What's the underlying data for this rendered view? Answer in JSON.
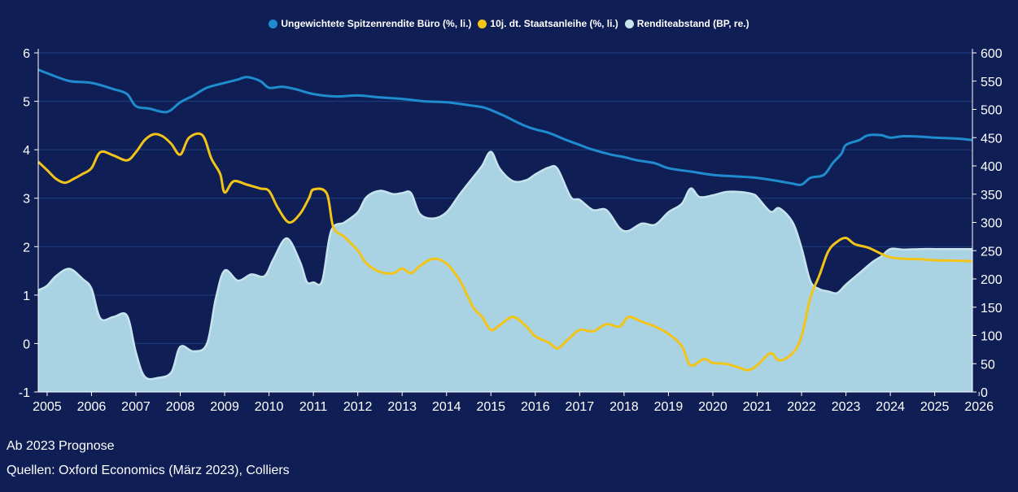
{
  "colors": {
    "background": "#0f1f55",
    "yield_office": "#1f8ccf",
    "bund": "#f2c418",
    "spread_fill": "#a9d3e3",
    "spread_line": "#c7e4ee",
    "grid": "#1f3f80"
  },
  "legend": [
    {
      "label": "Ungewichtete Spitzenrendite Büro (%, li.)",
      "color": "#1f8ccf"
    },
    {
      "label": "10j. dt. Staatsanleihe (%, li.)",
      "color": "#f2c418"
    },
    {
      "label": "Renditeabstand (BP, re.)",
      "color": "#c7e4ee"
    }
  ],
  "footnotes": {
    "forecast": "Ab 2023 Prognose",
    "sources": "Quellen: Oxford Economics (März 2023), Colliers"
  },
  "chart_data": {
    "type": "line",
    "x_range": [
      2004.8,
      2025.85
    ],
    "x_ticks": [
      "2005",
      "2006",
      "2007",
      "2008",
      "2009",
      "2010",
      "2011",
      "2012",
      "2013",
      "2014",
      "2015",
      "2016",
      "2017",
      "2018",
      "2019",
      "2020",
      "2021",
      "2022",
      "2023",
      "2024",
      "2025",
      "2026"
    ],
    "y_left": {
      "range": [
        -1,
        6
      ],
      "ticks": [
        "-1",
        "0",
        "1",
        "2",
        "3",
        "4",
        "5",
        "6"
      ]
    },
    "y_right": {
      "range": [
        0,
        600
      ],
      "ticks": [
        "0",
        "50",
        "100",
        "150",
        "200",
        "250",
        "300",
        "350",
        "400",
        "450",
        "500",
        "550",
        "600"
      ]
    },
    "grid": true,
    "legend_position": "top",
    "series": [
      {
        "name": "Ungewichtete Spitzenrendite Büro (%, li.)",
        "axis": "left",
        "points": [
          [
            2004.8,
            5.65
          ],
          [
            2005.0,
            5.58
          ],
          [
            2005.5,
            5.42
          ],
          [
            2006.0,
            5.38
          ],
          [
            2006.5,
            5.25
          ],
          [
            2006.8,
            5.15
          ],
          [
            2007.0,
            4.9
          ],
          [
            2007.3,
            4.85
          ],
          [
            2007.7,
            4.78
          ],
          [
            2008.0,
            4.98
          ],
          [
            2008.3,
            5.12
          ],
          [
            2008.6,
            5.28
          ],
          [
            2009.0,
            5.38
          ],
          [
            2009.3,
            5.45
          ],
          [
            2009.5,
            5.5
          ],
          [
            2009.8,
            5.42
          ],
          [
            2010.0,
            5.28
          ],
          [
            2010.3,
            5.3
          ],
          [
            2010.6,
            5.25
          ],
          [
            2011.0,
            5.15
          ],
          [
            2011.5,
            5.1
          ],
          [
            2012.0,
            5.12
          ],
          [
            2012.5,
            5.08
          ],
          [
            2013.0,
            5.05
          ],
          [
            2013.5,
            5.0
          ],
          [
            2014.0,
            4.98
          ],
          [
            2014.5,
            4.92
          ],
          [
            2014.8,
            4.88
          ],
          [
            2015.0,
            4.82
          ],
          [
            2015.3,
            4.7
          ],
          [
            2015.7,
            4.52
          ],
          [
            2016.0,
            4.42
          ],
          [
            2016.3,
            4.35
          ],
          [
            2016.7,
            4.2
          ],
          [
            2017.0,
            4.1
          ],
          [
            2017.3,
            4.0
          ],
          [
            2017.7,
            3.9
          ],
          [
            2018.0,
            3.85
          ],
          [
            2018.3,
            3.78
          ],
          [
            2018.7,
            3.72
          ],
          [
            2019.0,
            3.62
          ],
          [
            2019.5,
            3.55
          ],
          [
            2020.0,
            3.48
          ],
          [
            2020.5,
            3.45
          ],
          [
            2021.0,
            3.42
          ],
          [
            2021.5,
            3.35
          ],
          [
            2021.8,
            3.3
          ],
          [
            2022.0,
            3.28
          ],
          [
            2022.2,
            3.42
          ],
          [
            2022.5,
            3.48
          ],
          [
            2022.7,
            3.72
          ],
          [
            2022.9,
            3.92
          ],
          [
            2023.0,
            4.1
          ],
          [
            2023.3,
            4.2
          ],
          [
            2023.5,
            4.3
          ],
          [
            2023.8,
            4.3
          ],
          [
            2024.0,
            4.25
          ],
          [
            2024.3,
            4.28
          ],
          [
            2024.7,
            4.27
          ],
          [
            2025.0,
            4.25
          ],
          [
            2025.5,
            4.23
          ],
          [
            2025.85,
            4.2
          ]
        ]
      },
      {
        "name": "10j. dt. Staatsanleihe (%, li.)",
        "axis": "left",
        "points": [
          [
            2004.8,
            3.75
          ],
          [
            2005.0,
            3.58
          ],
          [
            2005.2,
            3.4
          ],
          [
            2005.4,
            3.32
          ],
          [
            2005.6,
            3.4
          ],
          [
            2005.8,
            3.5
          ],
          [
            2006.0,
            3.62
          ],
          [
            2006.2,
            3.95
          ],
          [
            2006.5,
            3.88
          ],
          [
            2006.8,
            3.78
          ],
          [
            2007.0,
            3.95
          ],
          [
            2007.2,
            4.2
          ],
          [
            2007.4,
            4.32
          ],
          [
            2007.6,
            4.28
          ],
          [
            2007.8,
            4.12
          ],
          [
            2008.0,
            3.9
          ],
          [
            2008.2,
            4.25
          ],
          [
            2008.5,
            4.3
          ],
          [
            2008.7,
            3.82
          ],
          [
            2008.9,
            3.5
          ],
          [
            2009.0,
            3.12
          ],
          [
            2009.2,
            3.35
          ],
          [
            2009.5,
            3.28
          ],
          [
            2009.8,
            3.2
          ],
          [
            2010.0,
            3.15
          ],
          [
            2010.2,
            2.8
          ],
          [
            2010.45,
            2.5
          ],
          [
            2010.7,
            2.68
          ],
          [
            2010.9,
            3.0
          ],
          [
            2011.0,
            3.18
          ],
          [
            2011.3,
            3.1
          ],
          [
            2011.45,
            2.4
          ],
          [
            2011.7,
            2.2
          ],
          [
            2012.0,
            1.92
          ],
          [
            2012.2,
            1.65
          ],
          [
            2012.5,
            1.48
          ],
          [
            2012.8,
            1.45
          ],
          [
            2013.0,
            1.55
          ],
          [
            2013.2,
            1.45
          ],
          [
            2013.4,
            1.6
          ],
          [
            2013.7,
            1.75
          ],
          [
            2014.0,
            1.65
          ],
          [
            2014.3,
            1.3
          ],
          [
            2014.6,
            0.75
          ],
          [
            2014.8,
            0.55
          ],
          [
            2015.0,
            0.28
          ],
          [
            2015.2,
            0.38
          ],
          [
            2015.5,
            0.55
          ],
          [
            2015.8,
            0.35
          ],
          [
            2016.0,
            0.15
          ],
          [
            2016.3,
            0.02
          ],
          [
            2016.5,
            -0.1
          ],
          [
            2016.7,
            0.05
          ],
          [
            2017.0,
            0.28
          ],
          [
            2017.3,
            0.25
          ],
          [
            2017.6,
            0.4
          ],
          [
            2017.9,
            0.35
          ],
          [
            2018.1,
            0.55
          ],
          [
            2018.4,
            0.45
          ],
          [
            2018.7,
            0.35
          ],
          [
            2019.0,
            0.2
          ],
          [
            2019.3,
            -0.05
          ],
          [
            2019.5,
            -0.45
          ],
          [
            2019.8,
            -0.32
          ],
          [
            2020.0,
            -0.4
          ],
          [
            2020.3,
            -0.42
          ],
          [
            2020.6,
            -0.5
          ],
          [
            2020.8,
            -0.55
          ],
          [
            2021.0,
            -0.45
          ],
          [
            2021.3,
            -0.2
          ],
          [
            2021.5,
            -0.35
          ],
          [
            2021.8,
            -0.2
          ],
          [
            2022.0,
            0.15
          ],
          [
            2022.2,
            0.95
          ],
          [
            2022.4,
            1.4
          ],
          [
            2022.6,
            1.9
          ],
          [
            2022.8,
            2.1
          ],
          [
            2023.0,
            2.18
          ],
          [
            2023.2,
            2.05
          ],
          [
            2023.5,
            1.98
          ],
          [
            2023.8,
            1.85
          ],
          [
            2024.0,
            1.78
          ],
          [
            2024.3,
            1.75
          ],
          [
            2024.7,
            1.74
          ],
          [
            2025.0,
            1.72
          ],
          [
            2025.5,
            1.71
          ],
          [
            2025.85,
            1.7
          ]
        ]
      },
      {
        "name": "Renditeabstand (BP, re.)",
        "axis": "right",
        "style": "area",
        "points": [
          [
            2004.8,
            180
          ],
          [
            2005.0,
            188
          ],
          [
            2005.2,
            205
          ],
          [
            2005.5,
            218
          ],
          [
            2005.8,
            200
          ],
          [
            2006.0,
            183
          ],
          [
            2006.2,
            130
          ],
          [
            2006.5,
            133
          ],
          [
            2006.8,
            135
          ],
          [
            2007.0,
            70
          ],
          [
            2007.2,
            27
          ],
          [
            2007.5,
            25
          ],
          [
            2007.8,
            35
          ],
          [
            2008.0,
            80
          ],
          [
            2008.3,
            72
          ],
          [
            2008.6,
            85
          ],
          [
            2008.8,
            165
          ],
          [
            2009.0,
            215
          ],
          [
            2009.3,
            197
          ],
          [
            2009.6,
            208
          ],
          [
            2009.9,
            205
          ],
          [
            2010.1,
            235
          ],
          [
            2010.4,
            272
          ],
          [
            2010.7,
            230
          ],
          [
            2010.85,
            195
          ],
          [
            2011.0,
            194
          ],
          [
            2011.2,
            197
          ],
          [
            2011.4,
            285
          ],
          [
            2011.7,
            300
          ],
          [
            2012.0,
            318
          ],
          [
            2012.2,
            345
          ],
          [
            2012.5,
            356
          ],
          [
            2012.8,
            350
          ],
          [
            2013.0,
            352
          ],
          [
            2013.2,
            352
          ],
          [
            2013.4,
            315
          ],
          [
            2013.7,
            307
          ],
          [
            2014.0,
            318
          ],
          [
            2014.3,
            350
          ],
          [
            2014.6,
            380
          ],
          [
            2014.8,
            400
          ],
          [
            2015.0,
            425
          ],
          [
            2015.2,
            395
          ],
          [
            2015.5,
            373
          ],
          [
            2015.8,
            375
          ],
          [
            2016.0,
            385
          ],
          [
            2016.3,
            397
          ],
          [
            2016.5,
            395
          ],
          [
            2016.8,
            345
          ],
          [
            2017.0,
            340
          ],
          [
            2017.3,
            322
          ],
          [
            2017.6,
            322
          ],
          [
            2017.9,
            290
          ],
          [
            2018.1,
            285
          ],
          [
            2018.4,
            298
          ],
          [
            2018.7,
            296
          ],
          [
            2019.0,
            318
          ],
          [
            2019.3,
            333
          ],
          [
            2019.5,
            360
          ],
          [
            2019.7,
            345
          ],
          [
            2020.0,
            348
          ],
          [
            2020.3,
            354
          ],
          [
            2020.6,
            354
          ],
          [
            2020.9,
            350
          ],
          [
            2021.0,
            345
          ],
          [
            2021.3,
            319
          ],
          [
            2021.5,
            325
          ],
          [
            2021.8,
            300
          ],
          [
            2022.0,
            255
          ],
          [
            2022.2,
            196
          ],
          [
            2022.4,
            182
          ],
          [
            2022.6,
            178
          ],
          [
            2022.8,
            175
          ],
          [
            2023.0,
            190
          ],
          [
            2023.3,
            210
          ],
          [
            2023.6,
            230
          ],
          [
            2023.8,
            240
          ],
          [
            2024.0,
            253
          ],
          [
            2024.3,
            252
          ],
          [
            2024.7,
            253
          ],
          [
            2025.0,
            253
          ],
          [
            2025.85,
            253
          ]
        ]
      }
    ]
  }
}
